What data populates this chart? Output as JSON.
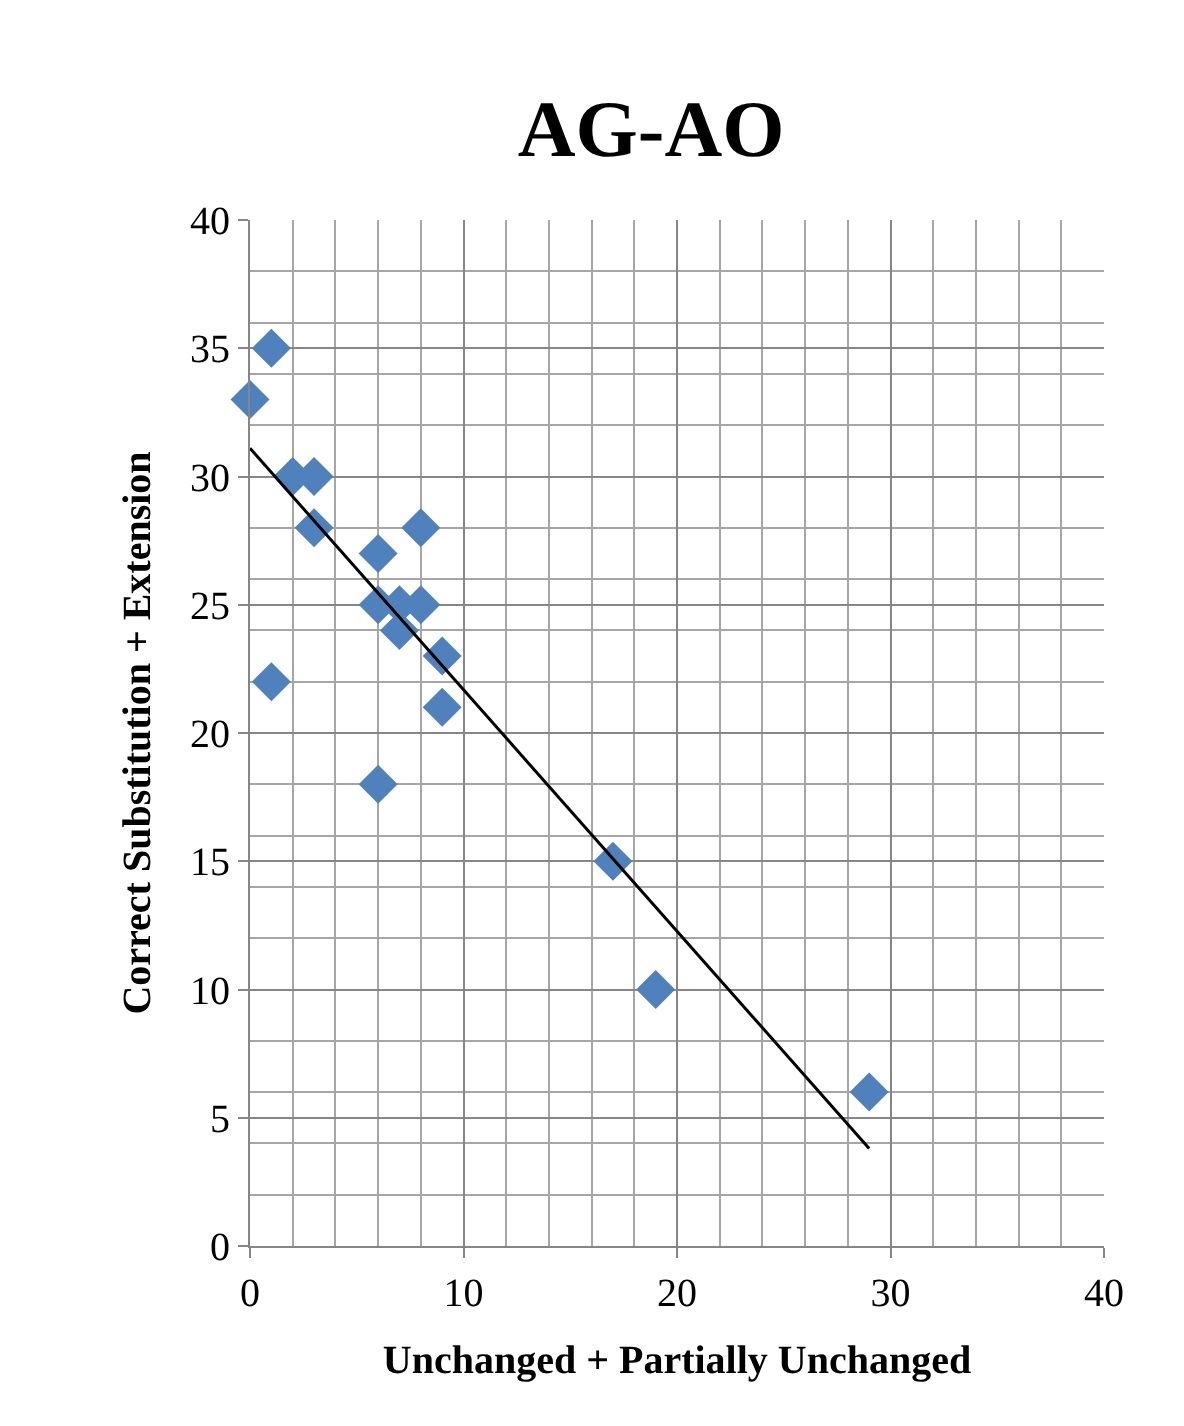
{
  "chart_data": {
    "type": "scatter",
    "title": "AG-AO",
    "xlabel": "Unchanged + Partially Unchanged",
    "ylabel": "Correct Substitution + Extension",
    "xlim": [
      0,
      40
    ],
    "xticks": [
      0,
      10,
      20,
      30,
      40
    ],
    "ylim": [
      0,
      40
    ],
    "yticks": [
      0,
      5,
      10,
      15,
      20,
      25,
      30,
      35,
      40
    ],
    "grid": true,
    "marker": "diamond",
    "series": [
      {
        "color": "#4f81bd",
        "x": [
          0,
          1,
          2,
          3,
          3,
          8,
          6,
          6,
          7,
          8,
          7,
          9,
          9,
          1,
          6,
          17,
          19,
          29
        ],
        "values": [
          33,
          35,
          30,
          30,
          28,
          28,
          27,
          25,
          25,
          25,
          24,
          23,
          21,
          22,
          18,
          15,
          10,
          6
        ]
      },
      {
        "type": "line",
        "marker": "none",
        "color": "#000000",
        "x": [
          0,
          29
        ],
        "values": [
          31.1,
          3.8
        ]
      }
    ]
  }
}
